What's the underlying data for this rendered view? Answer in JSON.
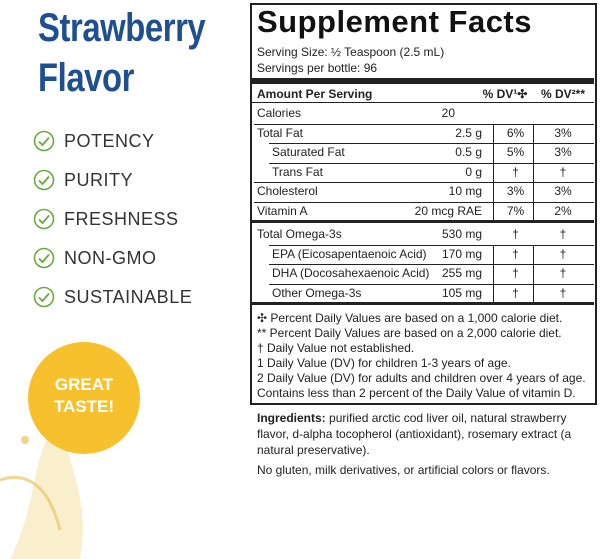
{
  "header": {
    "title_lines": [
      "Strawberry",
      "Flavor"
    ]
  },
  "features": [
    "POTENCY",
    "PURITY",
    "FRESHNESS",
    "NON-GMO",
    "SUSTAINABLE"
  ],
  "badge": {
    "lines": [
      "GREAT",
      "TASTE!"
    ]
  },
  "facts": {
    "title": "Supplement Facts",
    "serving_size": "Serving Size: ½ Teaspoon (2.5 mL)",
    "servings": "Servings per bottle: 96",
    "columns": [
      "Amount Per Serving",
      "% DV¹✣",
      "% DV²**"
    ],
    "groups": [
      [
        {
          "label": "Calories",
          "amount": "20"
        },
        {
          "label": "Total Fat",
          "amount": "2.5 g",
          "dv1": "6%",
          "dv2": "3%",
          "sub": [
            {
              "label": "Saturated Fat",
              "amount": "0.5 g",
              "dv1": "5%",
              "dv2": "3%"
            },
            {
              "label": "Trans Fat",
              "amount": "0 g",
              "dv1": "†",
              "dv2": "†"
            }
          ]
        },
        {
          "label": "Cholesterol",
          "amount": "10 mg",
          "dv1": "3%",
          "dv2": "3%"
        },
        {
          "label": "Vitamin A",
          "amount": "20 mcg RAE",
          "dv1": "7%",
          "dv2": "2%"
        }
      ],
      [
        {
          "label": "Total Omega-3s",
          "amount": "530 mg",
          "dv1": "†",
          "dv2": "†",
          "sub": [
            {
              "label": "EPA (Eicosapentaenoic Acid)",
              "amount": "170 mg",
              "dv1": "†",
              "dv2": "†"
            },
            {
              "label": "DHA (Docosahexaenoic Acid)",
              "amount": "255 mg",
              "dv1": "†",
              "dv2": "†"
            },
            {
              "label": "Other Omega-3s",
              "amount": "105 mg",
              "dv1": "†",
              "dv2": "†"
            }
          ]
        }
      ]
    ],
    "footnotes": [
      "✣ Percent Daily Values are based on a 1,000 calorie diet.",
      "** Percent Daily Values are based on a 2,000 calorie diet.",
      "†  Daily Value not established.",
      "1  Daily Value (DV) for children 1-3 years of age.",
      "2  Daily Value (DV) for adults and children over 4 years of age.",
      "Contains less than 2 percent of the Daily Value of vitamin D."
    ]
  },
  "ingredients": {
    "label": "Ingredients:",
    "text": "purified arctic cod liver oil, natural strawberry flavor, d-alpha tocopherol (antioxidant), rosemary extract (a natural preservative).",
    "note": "No gluten, milk derivatives, or artificial colors or flavors."
  }
}
